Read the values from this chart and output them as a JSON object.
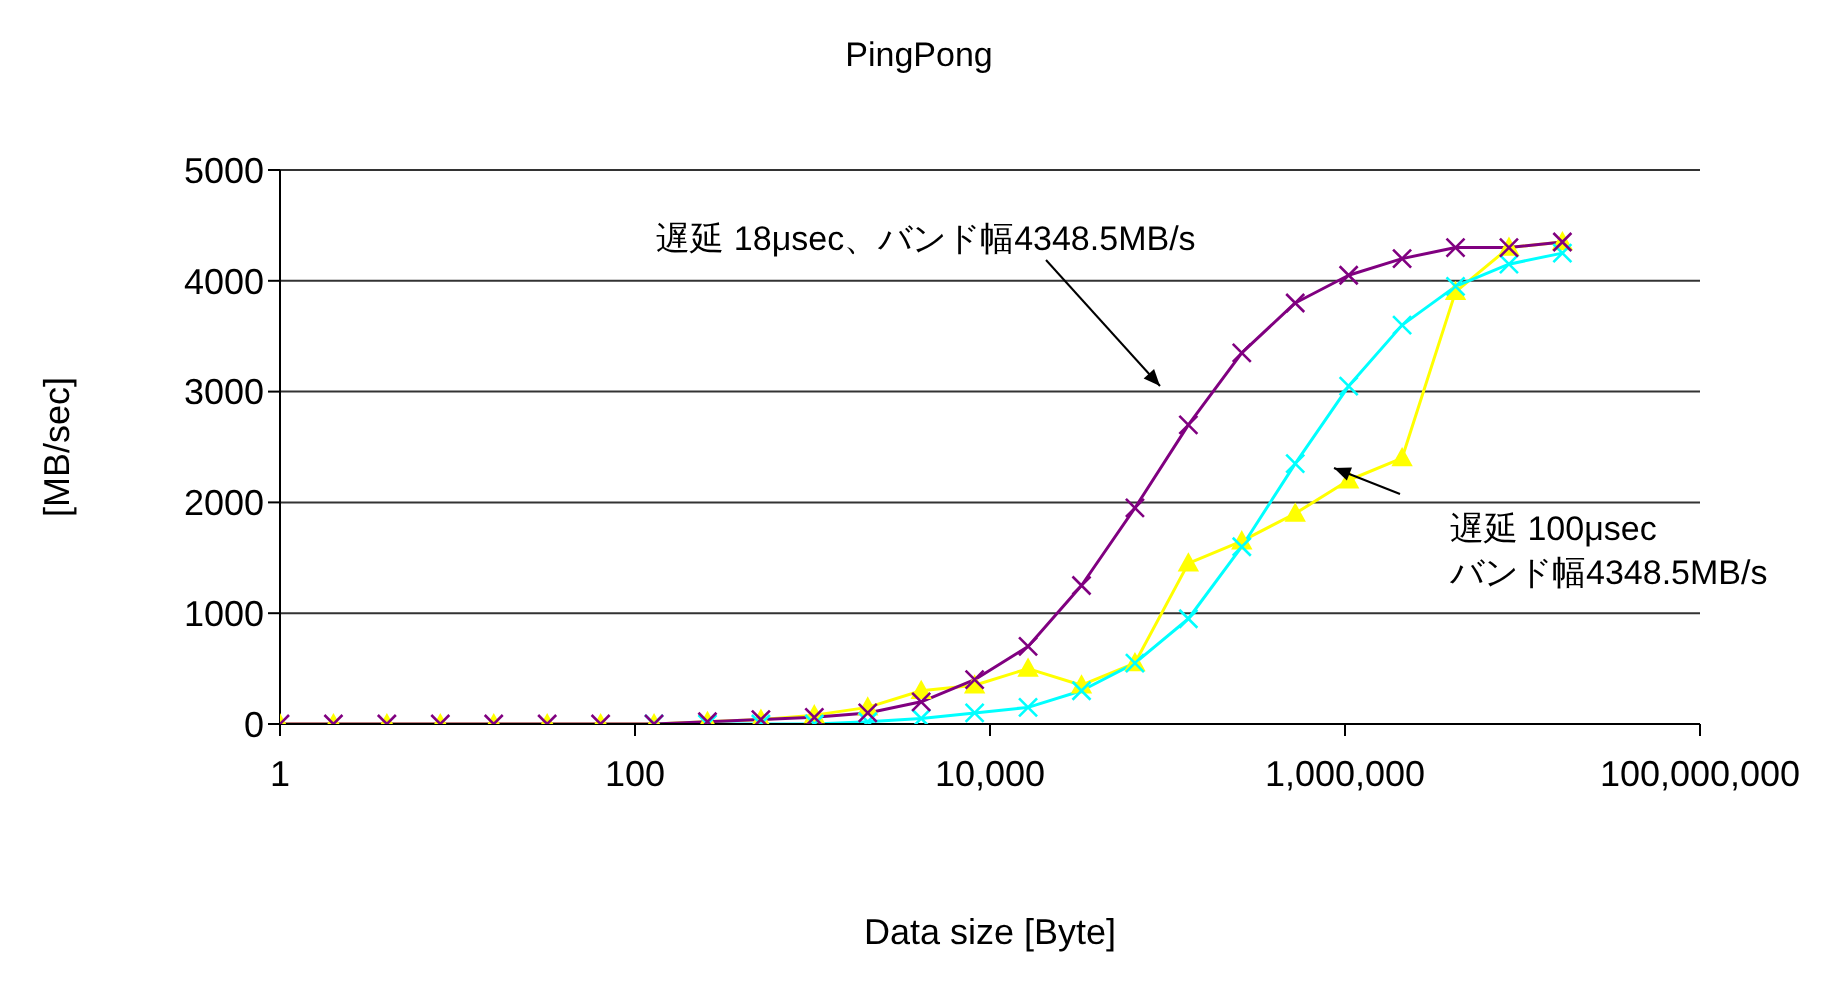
{
  "chart_data": {
    "type": "line",
    "title": "PingPong",
    "xlabel": "Data size [Byte]",
    "ylabel": "[MB/sec]",
    "log": "x",
    "grid": "y",
    "legend": false,
    "x": [
      1,
      2,
      4,
      8,
      16,
      32,
      64,
      128,
      256,
      512,
      1024,
      2048,
      4096,
      8192,
      16384,
      32768,
      65536,
      131072,
      262144,
      524288,
      1048576,
      2097152,
      4194304,
      8388608,
      16777216
    ],
    "xlim": [
      1,
      100000000
    ],
    "xticks": [
      1,
      100,
      {
        "value": 10000,
        "label": "10,000"
      },
      {
        "value": 1000000,
        "label": "1,000,000"
      },
      {
        "value": 100000000,
        "label": "100,000,000"
      }
    ],
    "ylim": [
      0,
      5000
    ],
    "yticks": [
      0,
      1000,
      2000,
      3000,
      4000,
      5000
    ],
    "series": [
      {
        "color": "#ffff00",
        "marker": "triangle",
        "values": [
          0,
          0,
          0,
          0,
          0,
          0,
          0,
          0,
          20,
          40,
          80,
          150,
          300,
          350,
          500,
          350,
          550,
          1450,
          1650,
          1900,
          2200,
          2400,
          3900,
          4300,
          4350
        ]
      },
      {
        "color": "#00ffff",
        "marker": "cross",
        "values": [
          null,
          null,
          null,
          null,
          null,
          null,
          null,
          0,
          0,
          0,
          0,
          20,
          50,
          100,
          150,
          300,
          550,
          950,
          1600,
          2350,
          3050,
          3600,
          3950,
          4150,
          4250
        ]
      },
      {
        "color": "#800080",
        "marker": "cross",
        "values": [
          0,
          0,
          0,
          0,
          0,
          0,
          0,
          0,
          20,
          40,
          60,
          100,
          200,
          400,
          700,
          1250,
          1950,
          2700,
          3350,
          3800,
          4050,
          4200,
          4300,
          4300,
          4350
        ]
      }
    ],
    "annotations": [
      "遅延 18μsec、バンド幅4348.5MB/s",
      "遅延 100μsec\nバンド幅4348.5MB/s"
    ]
  }
}
